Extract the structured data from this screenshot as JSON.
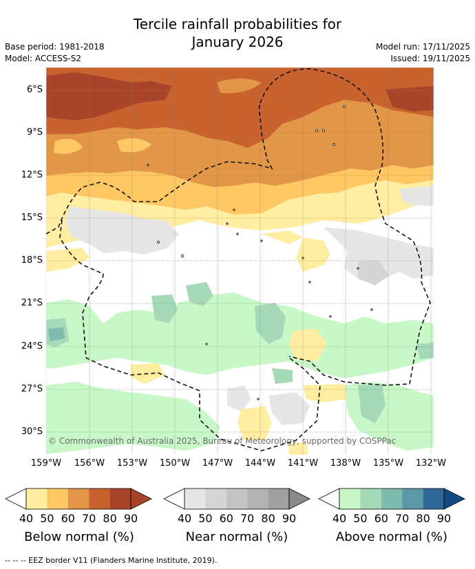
{
  "title_line1": "Tercile rainfall probabilities for",
  "title_line2": "January 2026",
  "base_period": "Base period: 1981-2018",
  "model": "Model: ACCESS-S2",
  "model_run": "Model run: 17/11/2025",
  "issued": "Issued: 19/11/2025",
  "lat_labels": [
    "6°S",
    "9°S",
    "12°S",
    "15°S",
    "18°S",
    "21°S",
    "24°S",
    "27°S",
    "30°S"
  ],
  "lon_labels": [
    "159°W",
    "156°W",
    "153°W",
    "150°W",
    "147°W",
    "144°W",
    "141°W",
    "138°W",
    "135°W",
    "132°W"
  ],
  "copyright": "© Commonwealth of Australia 2025, Bureau of Meteorology, supported by COSPPac",
  "legend": {
    "below": {
      "title": "Below normal (%)",
      "ticks": [
        "40",
        "50",
        "60",
        "70",
        "80",
        "90"
      ],
      "colors": [
        "#ffeea2",
        "#fdc863",
        "#e29647",
        "#c8622e",
        "#a8442a"
      ]
    },
    "near": {
      "title": "Near normal (%)",
      "ticks": [
        "40",
        "50",
        "60",
        "70",
        "80",
        "90"
      ],
      "colors": [
        "#e6e6e6",
        "#d5d5d5",
        "#c4c4c4",
        "#b2b2b2",
        "#a0a0a0"
      ]
    },
    "above": {
      "title": "Above normal (%)",
      "ticks": [
        "40",
        "50",
        "60",
        "70",
        "80",
        "90"
      ],
      "colors": [
        "#c8f7c8",
        "#a6d9b8",
        "#7fbcad",
        "#5c98a6",
        "#2e6798"
      ]
    }
  },
  "footer": "-- -- -- EEZ border V11 (Flanders Marine Institute, 2019)."
}
